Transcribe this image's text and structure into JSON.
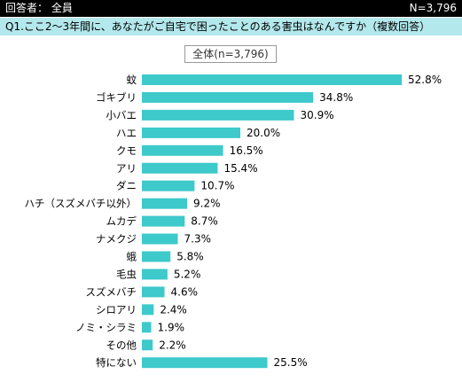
{
  "header": {
    "respondents": "回答者： 全員",
    "n": "N=3,796"
  },
  "question": "Q1.ここ2～3年間に、あなたがご自宅で困ったことのある害虫はなんですか（複数回答）",
  "colors": {
    "bar": "#3ec9cb",
    "header_bg": "#000000",
    "question_bg": "#b3e8ec"
  },
  "chart_data": {
    "type": "bar",
    "orientation": "horizontal",
    "legend": "全体(n=3,796)",
    "unit": "%",
    "xlim": [
      0,
      60
    ],
    "grid": false,
    "categories": [
      "蚊",
      "ゴキブリ",
      "小バエ",
      "ハエ",
      "クモ",
      "アリ",
      "ダニ",
      "ハチ（スズメバチ以外）",
      "ムカデ",
      "ナメクジ",
      "蛾",
      "毛虫",
      "スズメバチ",
      "シロアリ",
      "ノミ・シラミ",
      "その他",
      "特にない"
    ],
    "values": [
      52.8,
      34.8,
      30.9,
      20.0,
      16.5,
      15.4,
      10.7,
      9.2,
      8.7,
      7.3,
      5.8,
      5.2,
      4.6,
      2.4,
      1.9,
      2.2,
      25.5
    ],
    "labels": [
      "52.8%",
      "34.8%",
      "30.9%",
      "20.0%",
      "16.5%",
      "15.4%",
      "10.7%",
      "9.2%",
      "8.7%",
      "7.3%",
      "5.8%",
      "5.2%",
      "4.6%",
      "2.4%",
      "1.9%",
      "2.2%",
      "25.5%"
    ]
  }
}
